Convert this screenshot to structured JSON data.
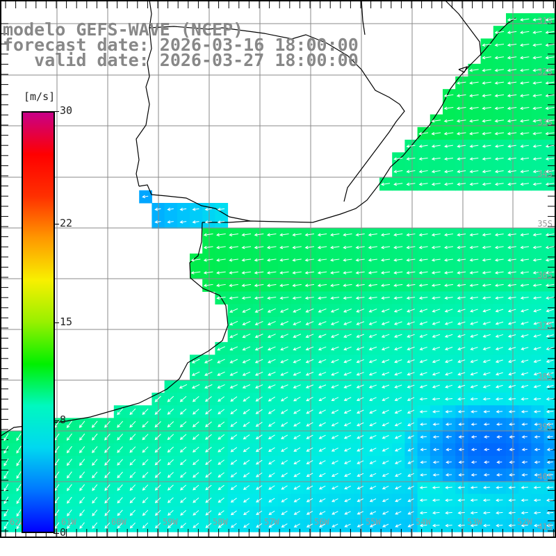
{
  "titles": {
    "model": "modelo GEFS-WAVE (NCEP)",
    "forecast": "forecast date: 2026-03-16 18:00:00",
    "valid": "   valid date: 2026-03-27 18:00:00"
  },
  "colorbar": {
    "unit": "[m/s]",
    "min": 0,
    "max": 30,
    "ticks": [
      {
        "value": 30,
        "label": "30"
      },
      {
        "value": 22,
        "label": "22"
      },
      {
        "value": 15,
        "label": "15"
      },
      {
        "value": 8,
        "label": "8"
      },
      {
        "value": 0,
        "label": "0"
      }
    ],
    "colors": [
      "#0000ff",
      "#0078ff",
      "#00d8f0",
      "#00f8c0",
      "#00f000",
      "#98f000",
      "#f8f000",
      "#ff9800",
      "#ff3000",
      "#ff0000",
      "#c80088"
    ]
  },
  "latitude_labels": [
    "31S",
    "32S",
    "33S",
    "34S",
    "35S",
    "36S",
    "37S",
    "38S",
    "39S",
    "40S",
    "41S"
  ],
  "longitude_labels": [
    "62W",
    "61W",
    "60W",
    "59W",
    "58W",
    "57W",
    "56W",
    "55W",
    "54W",
    "53W",
    "52W"
  ],
  "colors": {
    "grid": "#8a8a8a",
    "coast": "#000000",
    "arrow": "#ffffff",
    "title": "#888888"
  }
}
